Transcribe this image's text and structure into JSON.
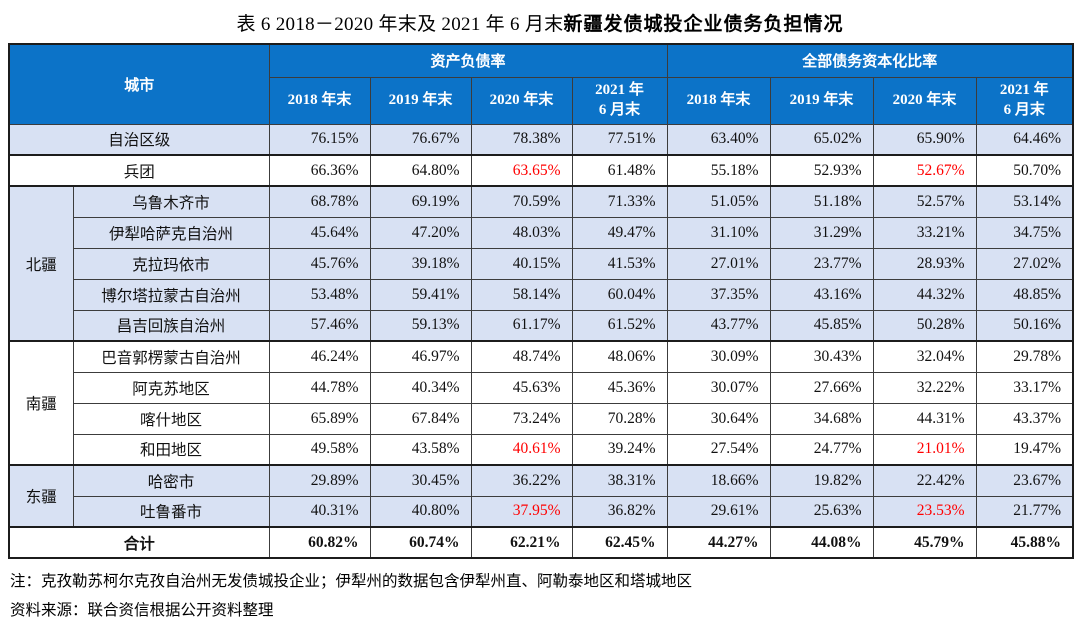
{
  "title": {
    "normal": "表 6  2018－2020 年末及 2021 年 6 月末",
    "bold": "新疆发债城投企业债务负担情况"
  },
  "table": {
    "city_header": "城市",
    "sections": [
      {
        "label": "资产负债率",
        "years": [
          "2018 年末",
          "2019 年末",
          "2020 年末",
          "2021 年\n6 月末"
        ]
      },
      {
        "label": "全部债务资本化比率",
        "years": [
          "2018 年末",
          "2019 年末",
          "2020 年末",
          "2021 年\n6 月末"
        ]
      }
    ],
    "rows": [
      {
        "city": "自治区级",
        "full_span": true,
        "shaded": true,
        "thick": false,
        "bold": false,
        "values": [
          "76.15%",
          "76.67%",
          "78.38%",
          "77.51%",
          "63.40%",
          "65.02%",
          "65.90%",
          "64.46%"
        ],
        "red": []
      },
      {
        "city": "兵团",
        "full_span": true,
        "shaded": false,
        "thick": true,
        "bold": false,
        "values": [
          "66.36%",
          "64.80%",
          "63.65%",
          "61.48%",
          "55.18%",
          "52.93%",
          "52.67%",
          "50.70%"
        ],
        "red": [
          2,
          6
        ]
      },
      {
        "group": "北疆",
        "group_span": 5,
        "city": "乌鲁木齐市",
        "shaded": true,
        "thick": true,
        "bold": false,
        "values": [
          "68.78%",
          "69.19%",
          "70.59%",
          "71.33%",
          "51.05%",
          "51.18%",
          "52.57%",
          "53.14%"
        ],
        "red": []
      },
      {
        "city": "伊犁哈萨克自治州",
        "shaded": true,
        "thick": false,
        "bold": false,
        "values": [
          "45.64%",
          "47.20%",
          "48.03%",
          "49.47%",
          "31.10%",
          "31.29%",
          "33.21%",
          "34.75%"
        ],
        "red": []
      },
      {
        "city": "克拉玛依市",
        "shaded": true,
        "thick": false,
        "bold": false,
        "values": [
          "45.76%",
          "39.18%",
          "40.15%",
          "41.53%",
          "27.01%",
          "23.77%",
          "28.93%",
          "27.02%"
        ],
        "red": []
      },
      {
        "city": "博尔塔拉蒙古自治州",
        "shaded": true,
        "thick": false,
        "bold": false,
        "values": [
          "53.48%",
          "59.41%",
          "58.14%",
          "60.04%",
          "37.35%",
          "43.16%",
          "44.32%",
          "48.85%"
        ],
        "red": []
      },
      {
        "city": "昌吉回族自治州",
        "shaded": true,
        "thick": false,
        "bold": false,
        "values": [
          "57.46%",
          "59.13%",
          "61.17%",
          "61.52%",
          "43.77%",
          "45.85%",
          "50.28%",
          "50.16%"
        ],
        "red": []
      },
      {
        "group": "南疆",
        "group_span": 4,
        "city": "巴音郭楞蒙古自治州",
        "shaded": false,
        "thick": true,
        "bold": false,
        "values": [
          "46.24%",
          "46.97%",
          "48.74%",
          "48.06%",
          "30.09%",
          "30.43%",
          "32.04%",
          "29.78%"
        ],
        "red": []
      },
      {
        "city": "阿克苏地区",
        "shaded": false,
        "thick": false,
        "bold": false,
        "values": [
          "44.78%",
          "40.34%",
          "45.63%",
          "45.36%",
          "30.07%",
          "27.66%",
          "32.22%",
          "33.17%"
        ],
        "red": []
      },
      {
        "city": "喀什地区",
        "shaded": false,
        "thick": false,
        "bold": false,
        "values": [
          "65.89%",
          "67.84%",
          "73.24%",
          "70.28%",
          "30.64%",
          "34.68%",
          "44.31%",
          "43.37%"
        ],
        "red": []
      },
      {
        "city": "和田地区",
        "shaded": false,
        "thick": false,
        "bold": false,
        "values": [
          "49.58%",
          "43.58%",
          "40.61%",
          "39.24%",
          "27.54%",
          "24.77%",
          "21.01%",
          "19.47%"
        ],
        "red": [
          2,
          6
        ]
      },
      {
        "group": "东疆",
        "group_span": 2,
        "city": "哈密市",
        "shaded": true,
        "thick": true,
        "bold": false,
        "values": [
          "29.89%",
          "30.45%",
          "36.22%",
          "38.31%",
          "18.66%",
          "19.82%",
          "22.42%",
          "23.67%"
        ],
        "red": []
      },
      {
        "city": "吐鲁番市",
        "shaded": true,
        "thick": false,
        "bold": false,
        "values": [
          "40.31%",
          "40.80%",
          "37.95%",
          "36.82%",
          "29.61%",
          "25.63%",
          "23.53%",
          "21.77%"
        ],
        "red": [
          2,
          6
        ]
      },
      {
        "city": "合计",
        "full_span": true,
        "shaded": false,
        "thick": true,
        "bold": true,
        "values": [
          "60.82%",
          "60.74%",
          "62.21%",
          "62.45%",
          "44.27%",
          "44.08%",
          "45.79%",
          "45.88%"
        ],
        "red": []
      }
    ]
  },
  "notes": [
    "注：克孜勒苏柯尔克孜自治州无发债城投企业；伊犁州的数据包含伊犁州直、阿勒泰地区和塔城地区",
    "资料来源：联合资信根据公开资料整理"
  ],
  "colors": {
    "header_bg": "#0c73c8",
    "shaded_row_bg": "#d8e1f3",
    "highlight_red": "#ff0000"
  }
}
